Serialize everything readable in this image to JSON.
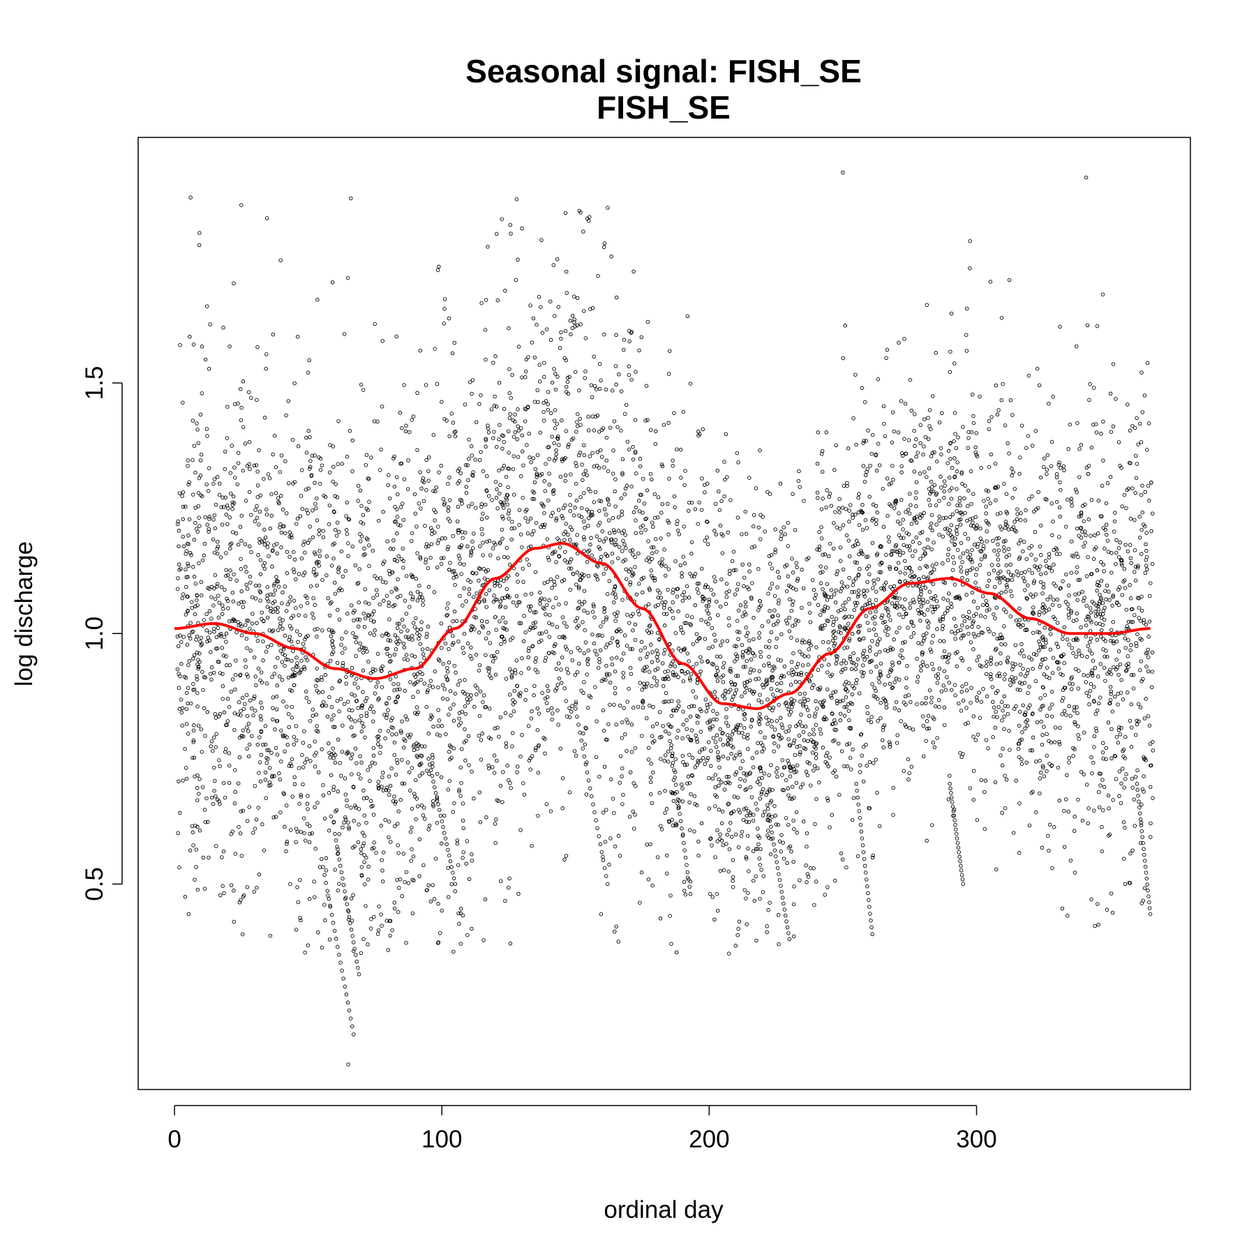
{
  "chart_data": {
    "type": "scatter",
    "title": "Seasonal signal: FISH_SE",
    "subtitle": "FISH_SE",
    "xlabel": "ordinal day",
    "ylabel": "log discharge",
    "xlim": [
      -13.6,
      380
    ],
    "ylim": [
      0.09,
      1.99
    ],
    "x_ticks": [
      0,
      100,
      200,
      300
    ],
    "x_tick_labels": [
      "0",
      "100",
      "200",
      "300"
    ],
    "y_ticks": [
      0.5,
      1.0,
      1.5
    ],
    "y_tick_labels": [
      "0.5",
      "1.0",
      "1.5"
    ],
    "grid": false,
    "legend": "none",
    "colors": {
      "points": "#000000",
      "fit_line": "#ff0000",
      "frame": "#000000"
    },
    "series": [
      {
        "kind": "points",
        "marker": "open-circle",
        "approx_count": 6500,
        "x_range": [
          1,
          366
        ],
        "y_range": [
          0.14,
          1.92
        ],
        "note_points": [
          {
            "x": 6,
            "y": 1.87
          },
          {
            "x": 65,
            "y": 0.14
          },
          {
            "x": 250,
            "y": 1.92
          },
          {
            "x": 341,
            "y": 1.91
          },
          {
            "x": 226,
            "y": 0.38
          }
        ]
      },
      {
        "kind": "line",
        "x": [
          0,
          15,
          30,
          45,
          60,
          75,
          90,
          105,
          120,
          135,
          145,
          160,
          175,
          190,
          205,
          218,
          230,
          245,
          260,
          275,
          290,
          305,
          320,
          335,
          350,
          365
        ],
        "y": [
          1.01,
          1.02,
          1.0,
          0.97,
          0.93,
          0.91,
          0.93,
          1.01,
          1.11,
          1.17,
          1.18,
          1.14,
          1.05,
          0.94,
          0.86,
          0.85,
          0.88,
          0.96,
          1.05,
          1.1,
          1.11,
          1.08,
          1.03,
          1.0,
          1.0,
          1.01
        ]
      }
    ]
  }
}
